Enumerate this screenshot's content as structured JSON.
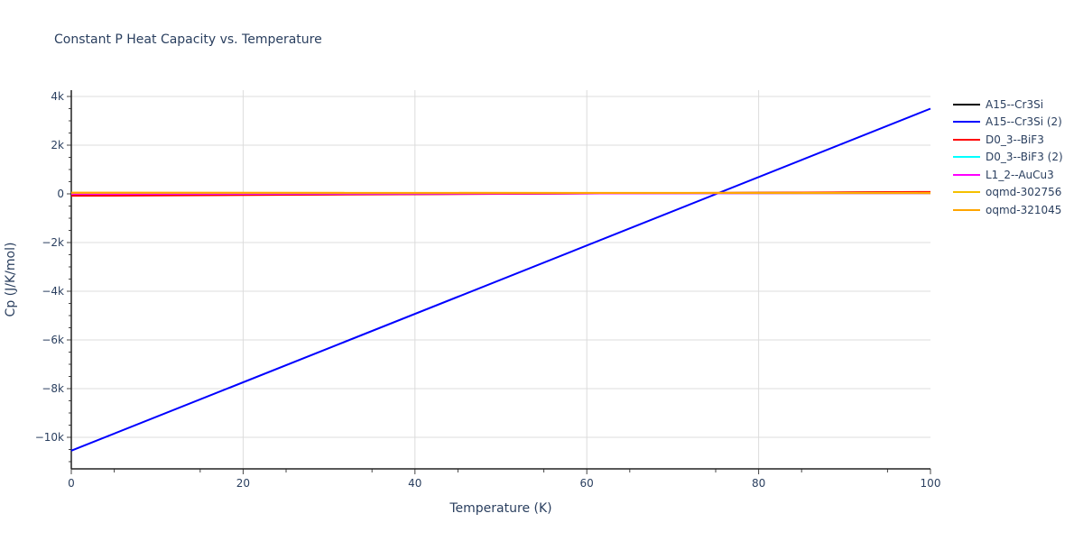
{
  "chart_data": {
    "type": "line",
    "title": "Constant P Heat Capacity vs. Temperature",
    "xlabel": "Temperature (K)",
    "ylabel": "Cp (J/K/mol)",
    "xlim": [
      0,
      100
    ],
    "ylim": [
      -11300,
      4300
    ],
    "grid": true,
    "legend_position": "right",
    "x_ticks": [
      "0",
      "20",
      "40",
      "60",
      "80",
      "100"
    ],
    "y_ticks": [
      "4k",
      "2k",
      "0",
      "−2k",
      "−4k",
      "−6k",
      "−8k",
      "−10k"
    ],
    "series": [
      {
        "name": "A15--Cr3Si",
        "color": "#000000",
        "x": [
          0,
          100
        ],
        "values": [
          -60,
          70
        ]
      },
      {
        "name": "A15--Cr3Si (2)",
        "color": "#0000ff",
        "x": [
          0,
          100
        ],
        "values": [
          -10550,
          3500
        ]
      },
      {
        "name": "D0_3--BiF3",
        "color": "#ff0000",
        "x": [
          0,
          100
        ],
        "values": [
          -80,
          80
        ]
      },
      {
        "name": "D0_3--BiF3 (2)",
        "color": "#00ffff",
        "x": [
          0,
          100
        ],
        "values": [
          0,
          30
        ]
      },
      {
        "name": "L1_2--AuCu3",
        "color": "#ff00ff",
        "x": [
          0,
          100
        ],
        "values": [
          0,
          30
        ]
      },
      {
        "name": "oqmd-302756",
        "color": "#f5c000",
        "x": [
          0,
          100
        ],
        "values": [
          40,
          40
        ]
      },
      {
        "name": "oqmd-321045",
        "color": "#ffa500",
        "x": [
          0,
          100
        ],
        "values": [
          50,
          30
        ]
      }
    ]
  }
}
